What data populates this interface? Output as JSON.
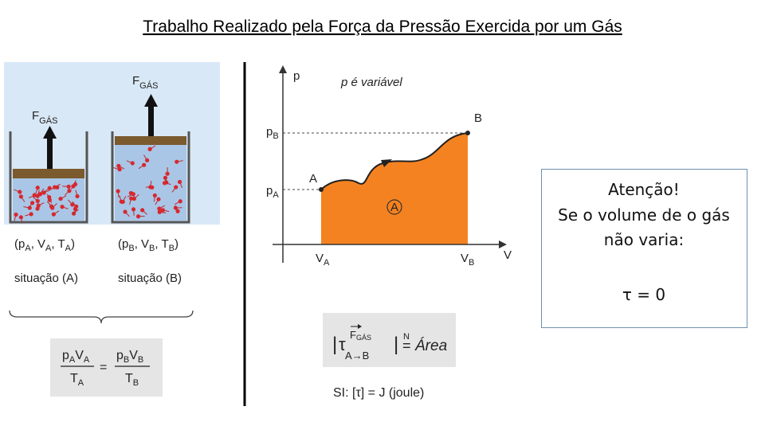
{
  "title": "Trabalho Realizado pela Força da Pressão Exercida por um Gás",
  "left_figure": {
    "force_a": [
      "F",
      "GÁS"
    ],
    "force_b": [
      "F",
      "GÁS"
    ],
    "state_a": [
      "(p",
      "A",
      ", V",
      "A",
      ", T",
      "A",
      ")"
    ],
    "state_b": [
      "(p",
      "B",
      ", V",
      "B",
      ", T",
      "B",
      ")"
    ],
    "situation_a": "situação (A)",
    "situation_b": "situação (B)",
    "equation": {
      "lhs_num": [
        "p",
        "A",
        "V",
        "A"
      ],
      "lhs_den": [
        "T",
        "A"
      ],
      "equals": "=",
      "rhs_num": [
        "p",
        "B",
        "V",
        "B"
      ],
      "rhs_den": [
        "T",
        "B"
      ]
    }
  },
  "graph": {
    "y_axis": "p",
    "x_axis": "V",
    "note": "p é variável",
    "p_b": [
      "p",
      "B"
    ],
    "p_a": [
      "p",
      "A"
    ],
    "v_a": [
      "V",
      "A"
    ],
    "v_b": [
      "V",
      "B"
    ],
    "point_a": "A",
    "point_b": "B",
    "area_label": "A"
  },
  "work_formula": {
    "open_bar": "|",
    "symbol": "τ",
    "force": "F",
    "force_sub": "GÁS",
    "from": "A",
    "arrow": "→",
    "to": "B",
    "close_bar": "|",
    "equals": "=",
    "equals_mark": "N",
    "area": "Área",
    "si_unit": "SI: [τ] = J (joule)"
  },
  "attention_box": {
    "heading": "Atenção!",
    "lines": [
      "Se o volume de o gás",
      "não varia:"
    ],
    "result": "τ = 0"
  }
}
